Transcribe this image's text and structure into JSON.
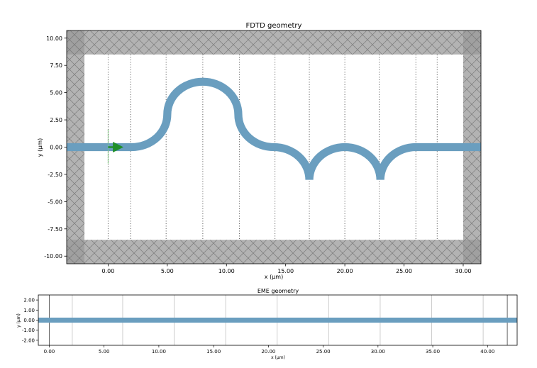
{
  "chart_data": [
    {
      "type": "scatter",
      "title": "FDTD geometry",
      "xlabel": "x (μm)",
      "ylabel": "y (μm)",
      "xlim": [
        -3.5,
        31.5
      ],
      "ylim": [
        -10.7,
        10.7
      ],
      "xticks": [
        0,
        5,
        10,
        15,
        20,
        25,
        30
      ],
      "xtick_labels": [
        "0.00",
        "5.00",
        "10.00",
        "15.00",
        "20.00",
        "25.00",
        "30.00"
      ],
      "yticks": [
        10,
        7.5,
        5,
        2.5,
        0,
        -2.5,
        -5,
        -7.5,
        -10
      ],
      "ytick_labels": [
        "10.00",
        "7.50",
        "5.00",
        "2.50",
        "0.00",
        "-2.50",
        "-5.00",
        "-7.50",
        "-10.00"
      ],
      "waveguide": {
        "color": "#6a9ebf",
        "width_um": 0.5,
        "path": [
          {
            "type": "straight",
            "from": [
              -3.5,
              0
            ],
            "to": [
              2,
              0
            ]
          },
          {
            "type": "arc",
            "from": [
              2,
              0
            ],
            "to": [
              5,
              3
            ],
            "center": [
              2,
              3
            ],
            "radius": 3
          },
          {
            "type": "arc",
            "from": [
              5,
              3
            ],
            "to": [
              11,
              3
            ],
            "center": [
              8,
              3
            ],
            "radius": 3
          },
          {
            "type": "arc",
            "from": [
              11,
              3
            ],
            "to": [
              14,
              0
            ],
            "center": [
              14,
              3
            ],
            "radius": 3
          },
          {
            "type": "arc",
            "from": [
              14,
              0
            ],
            "to": [
              17,
              -3
            ],
            "center": [
              14,
              -3
            ],
            "radius": 3
          },
          {
            "type": "arc",
            "from": [
              17,
              -3
            ],
            "to": [
              23,
              -3
            ],
            "center": [
              20,
              -3
            ],
            "radius": 3
          },
          {
            "type": "arc",
            "from": [
              23,
              -3
            ],
            "to": [
              26,
              0
            ],
            "center": [
              26,
              -3
            ],
            "radius": 3
          },
          {
            "type": "straight",
            "from": [
              26,
              0
            ],
            "to": [
              31.5,
              0
            ]
          }
        ]
      },
      "pml": {
        "x_min": -2,
        "x_max": 30,
        "y_min": -8.5,
        "y_max": 8.5,
        "fill_color": "#999999"
      },
      "monitors_x": [
        0,
        1.9,
        4.9,
        8.0,
        11.1,
        14.1,
        17.0,
        20.0,
        22.9,
        26.0,
        27.8
      ],
      "source": {
        "x": 0,
        "y": 0,
        "span": 3.2,
        "color": "#2ca02c"
      }
    },
    {
      "type": "scatter",
      "title": "EME geometry",
      "xlabel": "x (μm)",
      "ylabel": "y (μm)",
      "xlim": [
        -1,
        42.7
      ],
      "ylim": [
        -2.5,
        2.5
      ],
      "xticks": [
        0,
        5,
        10,
        15,
        20,
        25,
        30,
        35,
        40
      ],
      "xtick_labels": [
        "0.00",
        "5.00",
        "10.00",
        "15.00",
        "20.00",
        "25.00",
        "30.00",
        "35.00",
        "40.00"
      ],
      "yticks": [
        2,
        1,
        0,
        -1,
        -2
      ],
      "ytick_labels": [
        "2.00",
        "1.00",
        "0.00",
        "-1.00",
        "-2.00"
      ],
      "waveguide": {
        "y": 0,
        "width_um": 0.5,
        "color": "#6a9ebf"
      },
      "cell_boundaries_x": [
        0,
        2.1,
        6.7,
        11.4,
        16.1,
        20.8,
        25.5,
        30.2,
        34.9,
        39.6,
        41.8
      ],
      "boundary_colors": {
        "outer": "#555555",
        "inner": "#c8c8c8"
      }
    }
  ]
}
